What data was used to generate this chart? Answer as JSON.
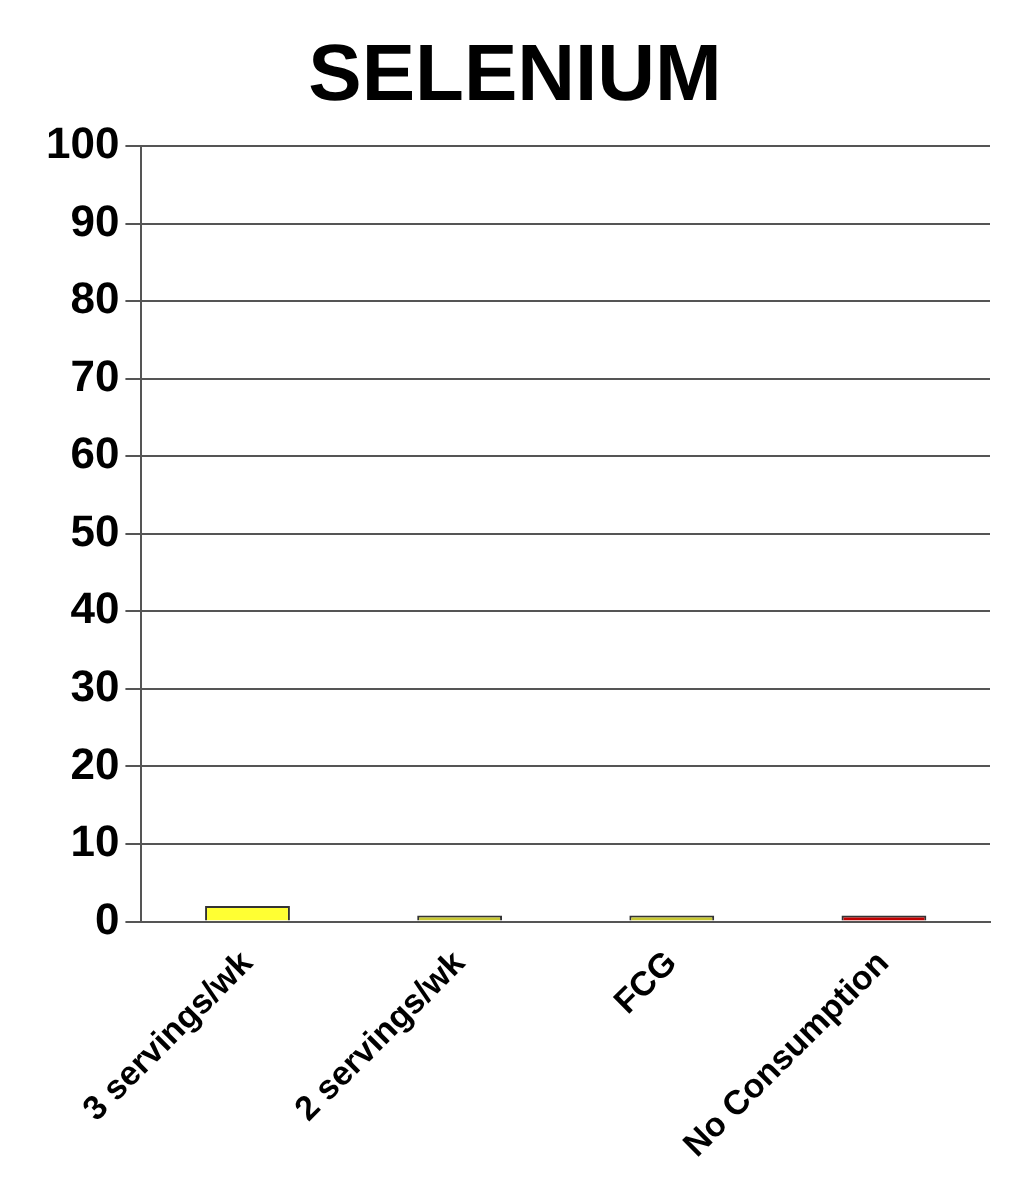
{
  "chart_data": {
    "type": "bar",
    "title": "SELENIUM",
    "categories": [
      "3 servings/wk",
      "2 servings/wk",
      "FCG",
      "No Consumption"
    ],
    "values": [
      2,
      0,
      0,
      0
    ],
    "colors": [
      "#ffff33",
      "#c8c832",
      "#c8c832",
      "#c00000"
    ],
    "ylim": [
      0,
      100
    ],
    "yticks": [
      0,
      10,
      20,
      30,
      40,
      50,
      60,
      70,
      80,
      90,
      100
    ],
    "grid": "y",
    "legend": false
  }
}
